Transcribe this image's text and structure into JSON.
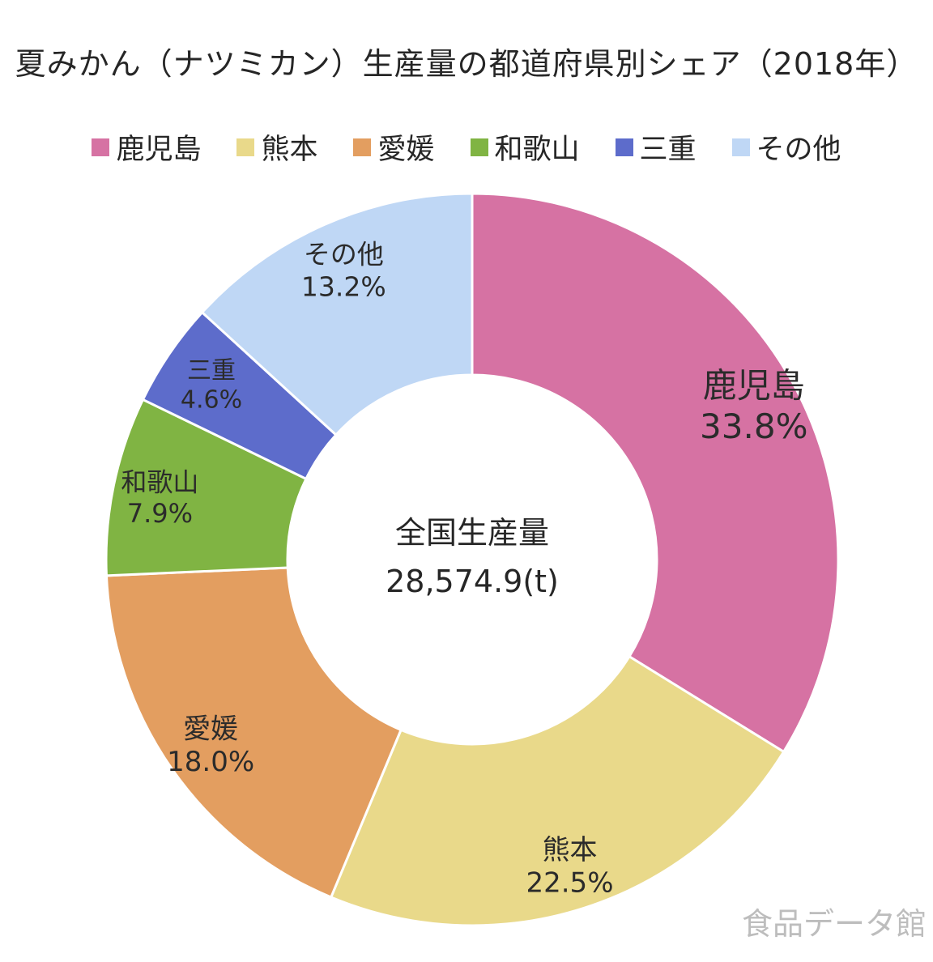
{
  "chart_data": {
    "type": "pie",
    "title": "夏みかん（ナツミカン）生産量の都道府県別シェア（2018年）",
    "center_label": "全国生産量",
    "center_value": "28,574.9(t)",
    "legend_position": "top",
    "slices": [
      {
        "name": "鹿児島",
        "value": 33.8,
        "label": "33.8%",
        "color": "#d672a3",
        "text_color": "#2b2b2b"
      },
      {
        "name": "熊本",
        "value": 22.5,
        "label": "22.5%",
        "color": "#e9d98a",
        "text_color": "#2b2b2b"
      },
      {
        "name": "愛媛",
        "value": 18.0,
        "label": "18.0%",
        "color": "#e39e60",
        "text_color": "#2b2b2b"
      },
      {
        "name": "和歌山",
        "value": 7.9,
        "label": "7.9%",
        "color": "#80b443",
        "text_color": "#2b2b2b"
      },
      {
        "name": "三重",
        "value": 4.6,
        "label": "4.6%",
        "color": "#5d6ccb",
        "text_color": "#2b2b2b"
      },
      {
        "name": "その他",
        "value": 13.2,
        "label": "13.2%",
        "color": "#bfd7f5",
        "text_color": "#2b2b2b"
      }
    ]
  },
  "watermark": "食品データ館"
}
